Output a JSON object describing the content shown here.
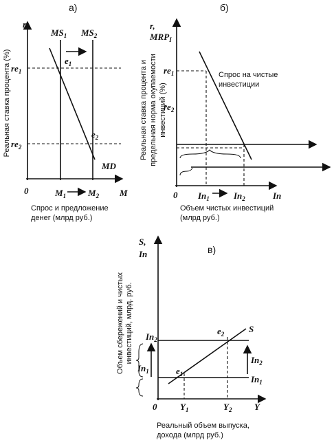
{
  "panel_a": {
    "label": "а)",
    "axis_y": "r",
    "axis_x": "M",
    "origin": "0",
    "ms1": {
      "main": "MS",
      "sub": "1"
    },
    "ms2": {
      "main": "MS",
      "sub": "2"
    },
    "re1": {
      "main": "re",
      "sub": "1"
    },
    "re2": {
      "main": "re",
      "sub": "2"
    },
    "e1": {
      "main": "e",
      "sub": "1"
    },
    "e2": {
      "main": "e",
      "sub": "2"
    },
    "md": "MD",
    "m1": {
      "main": "M",
      "sub": "1"
    },
    "m2": {
      "main": "M",
      "sub": "2"
    },
    "y_title": "Реальная ставка процента (%)",
    "caption": [
      "Спрос и предложение",
      "денег (млрд руб.)"
    ]
  },
  "panel_b": {
    "label": "б)",
    "axis_y": "r,",
    "axis_y2": {
      "main": "MRP",
      "sub": "I"
    },
    "axis_x": "In",
    "origin": "0",
    "re1": {
      "main": "re",
      "sub": "1"
    },
    "re2": {
      "main": "re",
      "sub": "2"
    },
    "curve": [
      "Спрос на чистые",
      "инвестиции"
    ],
    "in1": {
      "main": "In",
      "sub": "1"
    },
    "in2": {
      "main": "In",
      "sub": "2"
    },
    "y_title": [
      "Реальная ставка процента и",
      "предельная норма окупаемости",
      "инвестиций (%)"
    ],
    "caption": [
      "Объем чистых инвестиций",
      "(млрд руб.)"
    ]
  },
  "panel_c": {
    "label": "в)",
    "axis_y": "S,",
    "axis_y2": "In",
    "axis_x": "Y",
    "origin": "0",
    "in2_left": {
      "main": "In",
      "sub": "2"
    },
    "in1_left": {
      "main": "In",
      "sub": "1"
    },
    "e1": {
      "main": "e",
      "sub": "1"
    },
    "e2": {
      "main": "e",
      "sub": "2"
    },
    "s": "S",
    "in2_right": {
      "main": "In",
      "sub": "2"
    },
    "in1_right": {
      "main": "In",
      "sub": "1"
    },
    "y1": {
      "main": "Y",
      "sub": "1"
    },
    "y2": {
      "main": "Y",
      "sub": "2"
    },
    "y_title": [
      "Объем сбережений и чистых",
      "инвестиций, млрд. руб."
    ],
    "caption": [
      "Реальный объем выпуска,",
      "дохода (млрд руб.)"
    ]
  }
}
